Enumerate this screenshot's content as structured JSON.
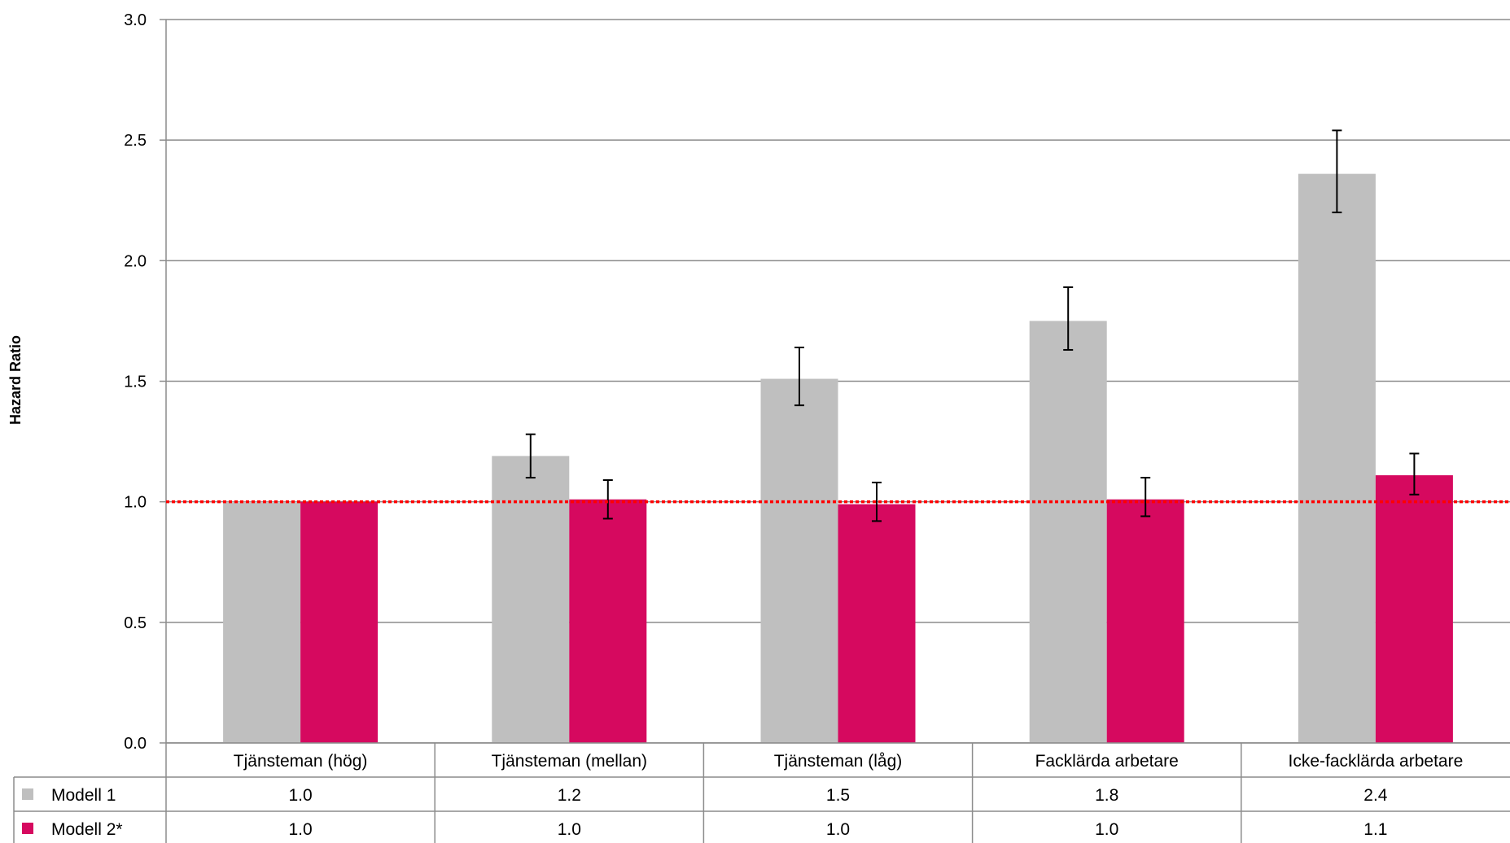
{
  "chart_data": {
    "type": "bar",
    "title": "",
    "xlabel": "",
    "ylabel": "Hazard Ratio",
    "ylim": [
      0,
      3
    ],
    "y_ticks": [
      "0.0",
      "0.5",
      "1.0",
      "1.5",
      "2.0",
      "2.5",
      "3.0"
    ],
    "y_tick_values": [
      0,
      0.5,
      1,
      1.5,
      2,
      2.5,
      3
    ],
    "grid": true,
    "reference_line": {
      "value": 1.0,
      "color": "#ff0000",
      "style": "dotted"
    },
    "legend_placement": "data-table",
    "categories": [
      "Tjänsteman (hög)",
      "Tjänsteman (mellan)",
      "Tjänsteman (låg)",
      "Facklärda arbetare",
      "Icke-facklärda arbetare"
    ],
    "series": [
      {
        "name": "Modell 1",
        "color": "#bfbfbf",
        "values": [
          1.0,
          1.19,
          1.51,
          1.75,
          2.36
        ],
        "ci_low": [
          null,
          1.1,
          1.4,
          1.63,
          2.2
        ],
        "ci_high": [
          null,
          1.28,
          1.64,
          1.89,
          2.54
        ],
        "table_values": [
          "1.0",
          "1.2",
          "1.5",
          "1.8",
          "2.4"
        ]
      },
      {
        "name": "Modell 2*",
        "color": "#d6095f",
        "values": [
          1.0,
          1.01,
          0.99,
          1.01,
          1.11
        ],
        "ci_low": [
          null,
          0.93,
          0.92,
          0.94,
          1.03
        ],
        "ci_high": [
          null,
          1.09,
          1.08,
          1.1,
          1.2
        ],
        "table_values": [
          "1.0",
          "1.0",
          "1.0",
          "1.0",
          "1.1"
        ]
      }
    ]
  }
}
